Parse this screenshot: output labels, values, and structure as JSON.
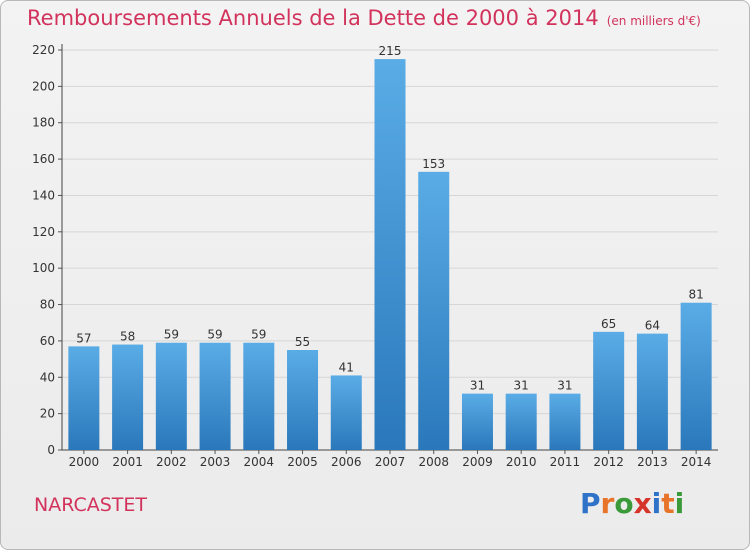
{
  "header": {
    "title": "Remboursements Annuels de la Dette de 2000 à 2014",
    "unit": "(en milliers d'€)"
  },
  "footer": {
    "commune": "NARCASTET",
    "logo": "Proxiti"
  },
  "colors": {
    "title": "#d2335c",
    "bar_top": "#5aace6",
    "bar_bottom": "#2a78bb"
  },
  "chart_data": {
    "type": "bar",
    "title": "Remboursements Annuels de la Dette de 2000 à 2014",
    "subtitle": "(en milliers d'€)",
    "xlabel": "",
    "ylabel": "",
    "categories": [
      "2000",
      "2001",
      "2002",
      "2003",
      "2004",
      "2005",
      "2006",
      "2007",
      "2008",
      "2009",
      "2010",
      "2011",
      "2012",
      "2013",
      "2014"
    ],
    "values": [
      57,
      58,
      59,
      59,
      59,
      55,
      41,
      215,
      153,
      31,
      31,
      31,
      65,
      64,
      81
    ],
    "ylim": [
      0,
      220
    ],
    "yticks": [
      0,
      20,
      40,
      60,
      80,
      100,
      120,
      140,
      160,
      180,
      200,
      220
    ],
    "grid": true,
    "data_labels": true
  }
}
